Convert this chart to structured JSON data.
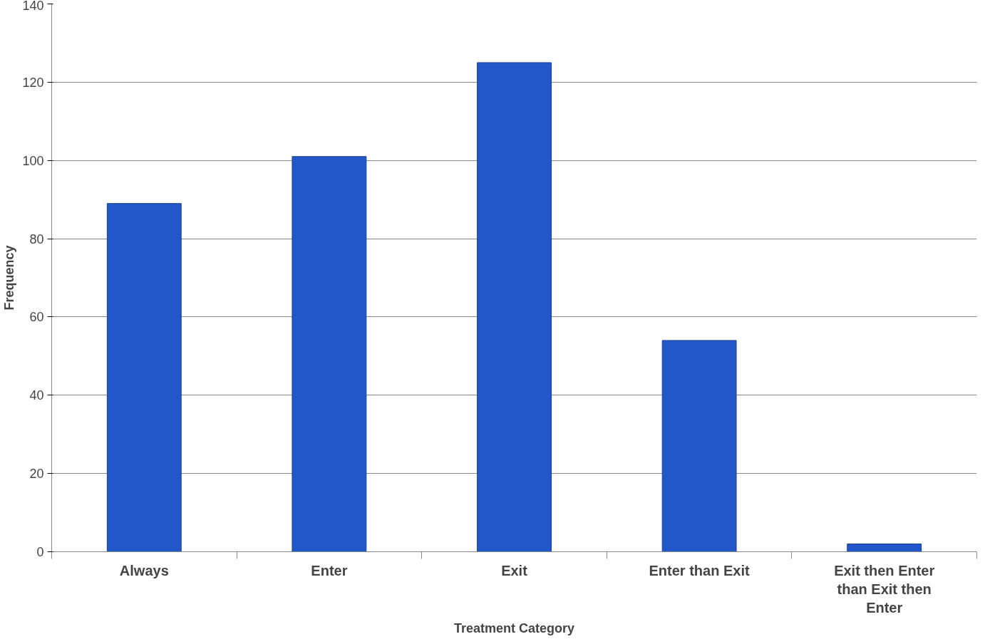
{
  "chart_data": {
    "type": "bar",
    "xlabel": "Treatment Category",
    "ylabel": "Frequency",
    "categories": [
      "Always",
      "Enter",
      "Exit",
      "Enter than Exit",
      "Exit then Enter than Exit then Enter"
    ],
    "values": [
      89,
      101,
      125,
      54,
      2
    ],
    "color": "#2157c8",
    "ylim": [
      0,
      140
    ],
    "yticks": [
      0,
      20,
      40,
      60,
      80,
      100,
      120,
      140
    ],
    "grid": "y"
  }
}
